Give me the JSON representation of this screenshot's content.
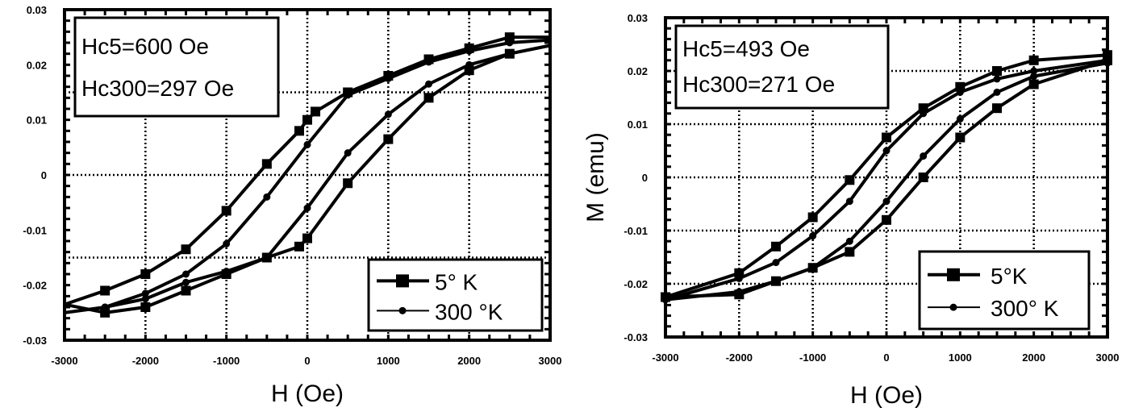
{
  "chart_data": [
    {
      "type": "line",
      "title": "",
      "xlabel": "H (Oe)",
      "ylabel": "",
      "xlim": [
        -3000,
        3000
      ],
      "ylim": [
        -0.03,
        0.03
      ],
      "xticks": [
        "-3000",
        "-2000",
        "-1000",
        "0",
        "1000",
        "2000",
        "3000"
      ],
      "yticks": [
        "0.03",
        "0.02",
        "0.01",
        "0",
        "-0.01",
        "-0.02",
        "-0.03"
      ],
      "grid": true,
      "annotation": [
        "Hc5=600 Oe",
        "Hc300=297 Oe"
      ],
      "legend_position": "bottom-right",
      "series": [
        {
          "name": "5° K",
          "marker": "square",
          "x": [
            3000,
            2500,
            2000,
            1500,
            1000,
            500,
            100,
            0,
            -100,
            -500,
            -1000,
            -1500,
            -2000,
            -2500,
            -3000,
            -2500,
            -2000,
            -1500,
            -1000,
            -500,
            -100,
            0,
            500,
            1000,
            1500,
            2000,
            2500,
            3000
          ],
          "y": [
            0.025,
            0.025,
            0.023,
            0.021,
            0.018,
            0.015,
            0.0115,
            0.01,
            0.008,
            0.002,
            -0.0065,
            -0.0135,
            -0.018,
            -0.021,
            -0.0235,
            -0.025,
            -0.024,
            -0.021,
            -0.018,
            -0.015,
            -0.013,
            -0.0115,
            -0.0015,
            0.0065,
            0.014,
            0.019,
            0.022,
            0.0235
          ]
        },
        {
          "name": "300 °K",
          "marker": "circle",
          "x": [
            3000,
            2500,
            2000,
            1500,
            1000,
            500,
            0,
            -500,
            -1000,
            -1500,
            -2000,
            -2500,
            -3000,
            -2500,
            -2000,
            -1500,
            -1000,
            -500,
            0,
            500,
            1000,
            1500,
            2000,
            2500,
            3000
          ],
          "y": [
            0.0245,
            0.024,
            0.0225,
            0.0205,
            0.0175,
            0.0145,
            0.0055,
            -0.004,
            -0.0125,
            -0.018,
            -0.0215,
            -0.024,
            -0.025,
            -0.024,
            -0.0225,
            -0.0195,
            -0.0175,
            -0.015,
            -0.006,
            0.004,
            0.011,
            0.0165,
            0.02,
            0.022,
            0.0235
          ]
        }
      ]
    },
    {
      "type": "line",
      "title": "",
      "xlabel": "H (Oe)",
      "ylabel": "M (emu)",
      "xlim": [
        -3000,
        3000
      ],
      "ylim": [
        -0.03,
        0.03
      ],
      "xticks": [
        "-3000",
        "-2000",
        "-1000",
        "0",
        "1000",
        "2000",
        "3000"
      ],
      "yticks": [
        "0.03",
        "0.02",
        "0.01",
        "0",
        "-0.01",
        "-0.02",
        "-0.03"
      ],
      "grid": true,
      "annotation": [
        "Hc5=493 Oe",
        "Hc300=271 Oe"
      ],
      "legend_position": "bottom-right",
      "series": [
        {
          "name": "5°K",
          "marker": "square",
          "x": [
            3000,
            2000,
            1500,
            1000,
            500,
            0,
            -500,
            -1000,
            -1500,
            -2000,
            -3000,
            -2000,
            -1500,
            -1000,
            -500,
            0,
            500,
            1000,
            1500,
            2000,
            3000
          ],
          "y": [
            0.023,
            0.022,
            0.02,
            0.017,
            0.013,
            0.0075,
            -0.0005,
            -0.0075,
            -0.013,
            -0.018,
            -0.0225,
            -0.022,
            -0.0195,
            -0.017,
            -0.014,
            -0.008,
            0.0,
            0.0075,
            0.013,
            0.0175,
            0.022
          ]
        },
        {
          "name": "300° K",
          "marker": "circle",
          "x": [
            3000,
            2000,
            1500,
            1000,
            500,
            0,
            -500,
            -1000,
            -1500,
            -2000,
            -3000,
            -2000,
            -1500,
            -1000,
            -500,
            0,
            500,
            1000,
            1500,
            2000,
            3000
          ],
          "y": [
            0.022,
            0.02,
            0.0185,
            0.016,
            0.012,
            0.005,
            -0.0045,
            -0.011,
            -0.016,
            -0.019,
            -0.023,
            -0.0215,
            -0.0195,
            -0.017,
            -0.012,
            -0.0045,
            0.004,
            0.011,
            0.016,
            0.019,
            0.0215
          ]
        }
      ]
    }
  ]
}
